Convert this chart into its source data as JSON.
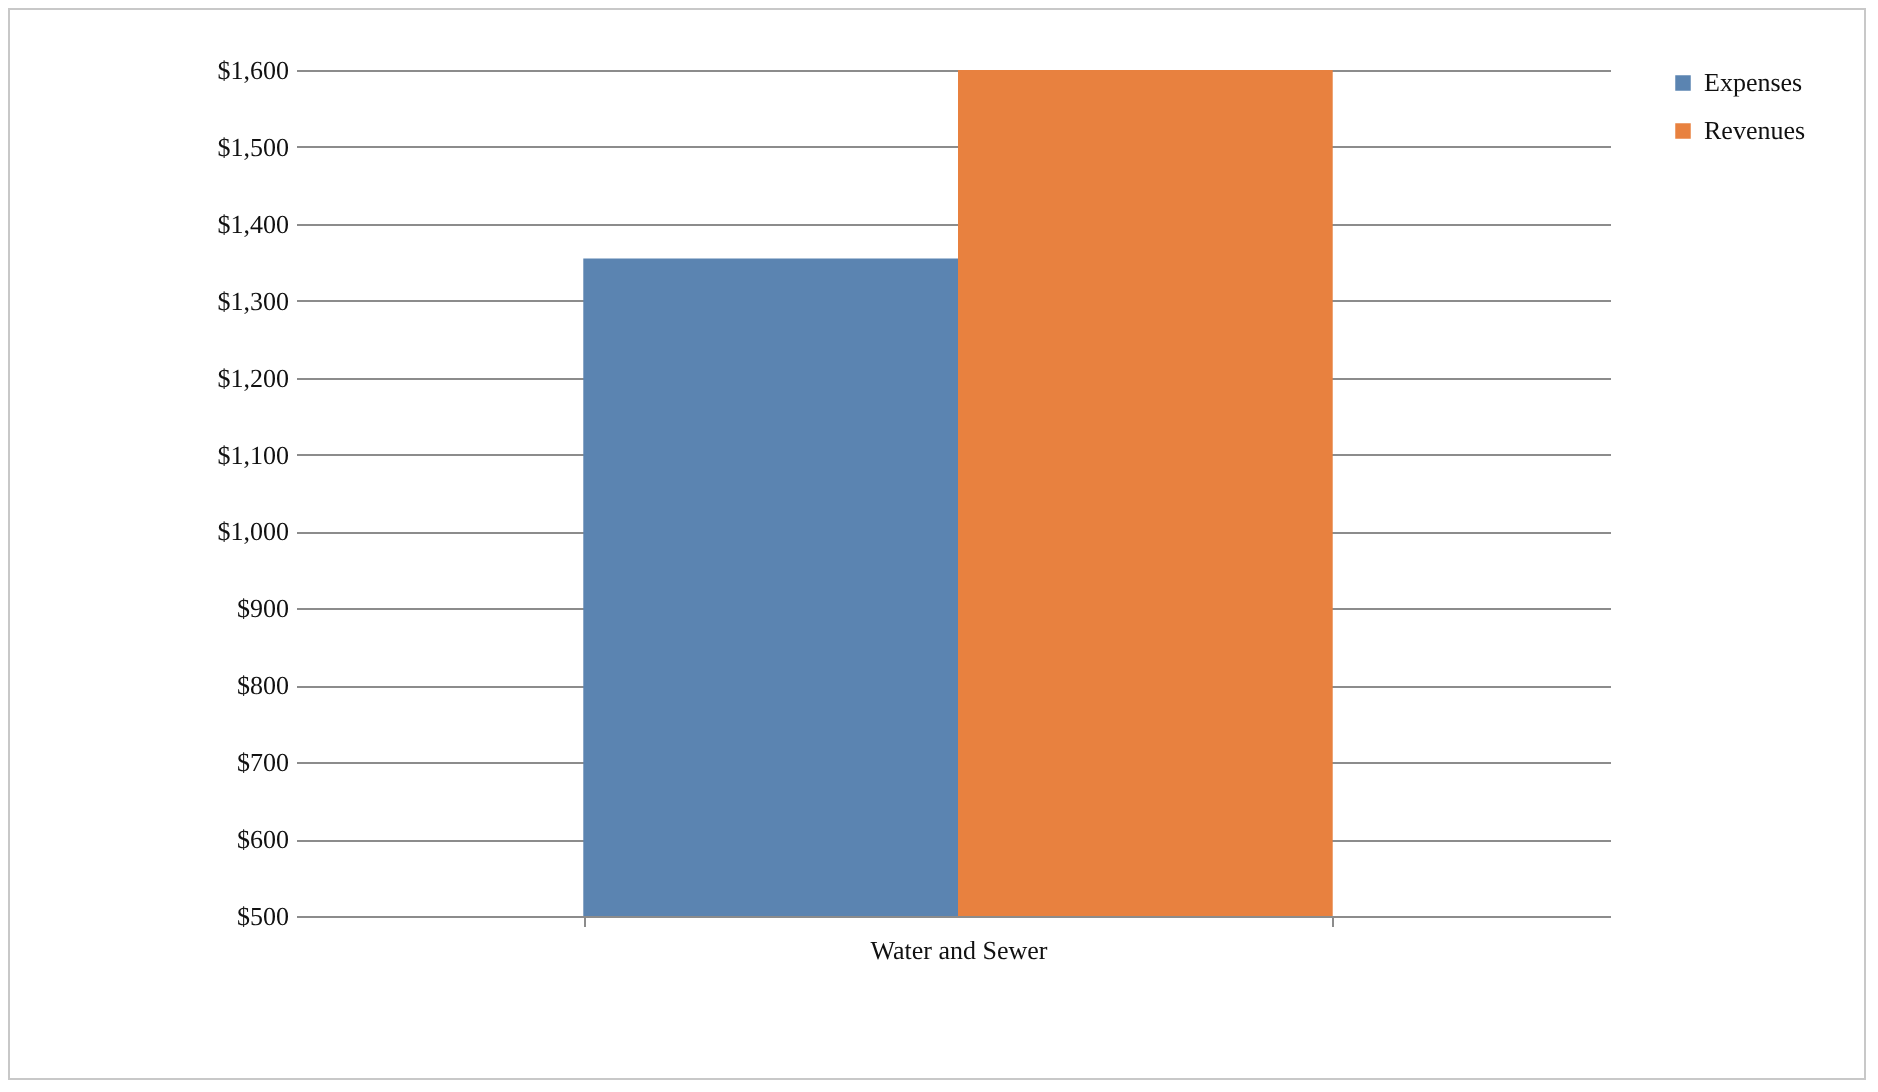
{
  "chart_data": {
    "type": "bar",
    "categories": [
      "Water and Sewer"
    ],
    "series": [
      {
        "name": "Expenses",
        "color": "#5b84b1",
        "values": [
          1355
        ]
      },
      {
        "name": "Revenues",
        "color": "#e8813f",
        "values": [
          1600
        ]
      }
    ],
    "ylim": [
      500,
      1600
    ],
    "yticks": [
      {
        "value": 500,
        "label": "$500"
      },
      {
        "value": 600,
        "label": "$600"
      },
      {
        "value": 700,
        "label": "$700"
      },
      {
        "value": 800,
        "label": "$800"
      },
      {
        "value": 900,
        "label": "$900"
      },
      {
        "value": 1000,
        "label": "$1,000"
      },
      {
        "value": 1100,
        "label": "$1,100"
      },
      {
        "value": 1200,
        "label": "$1,200"
      },
      {
        "value": 1300,
        "label": "$1,300"
      },
      {
        "value": 1400,
        "label": "$1,400"
      },
      {
        "value": 1500,
        "label": "$1,500"
      },
      {
        "value": 1600,
        "label": "$1,600"
      }
    ],
    "grid": "y",
    "legend": "right"
  }
}
